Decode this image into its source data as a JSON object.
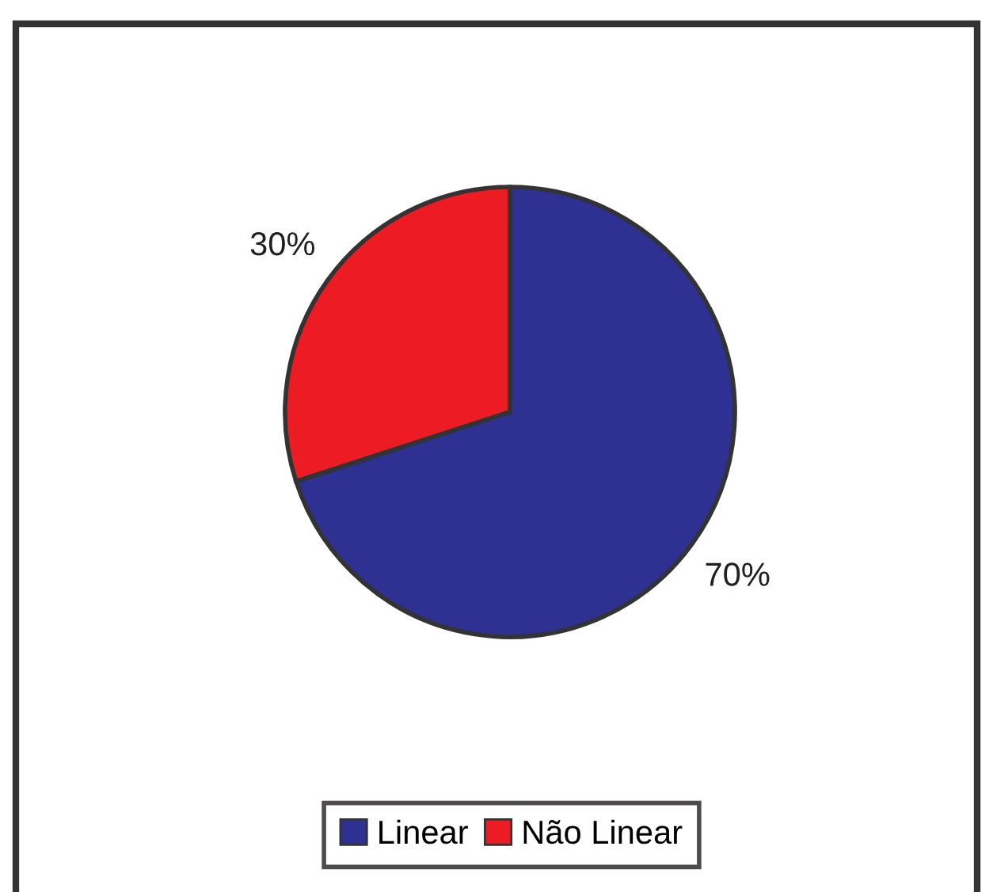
{
  "chart_data": {
    "type": "pie",
    "categories": [
      "Linear",
      "Não Linear"
    ],
    "values": [
      70,
      30
    ],
    "colors": [
      "#2e3192",
      "#ed1c24"
    ],
    "value_labels": [
      "70%",
      "30%"
    ],
    "legend": "bottom"
  }
}
